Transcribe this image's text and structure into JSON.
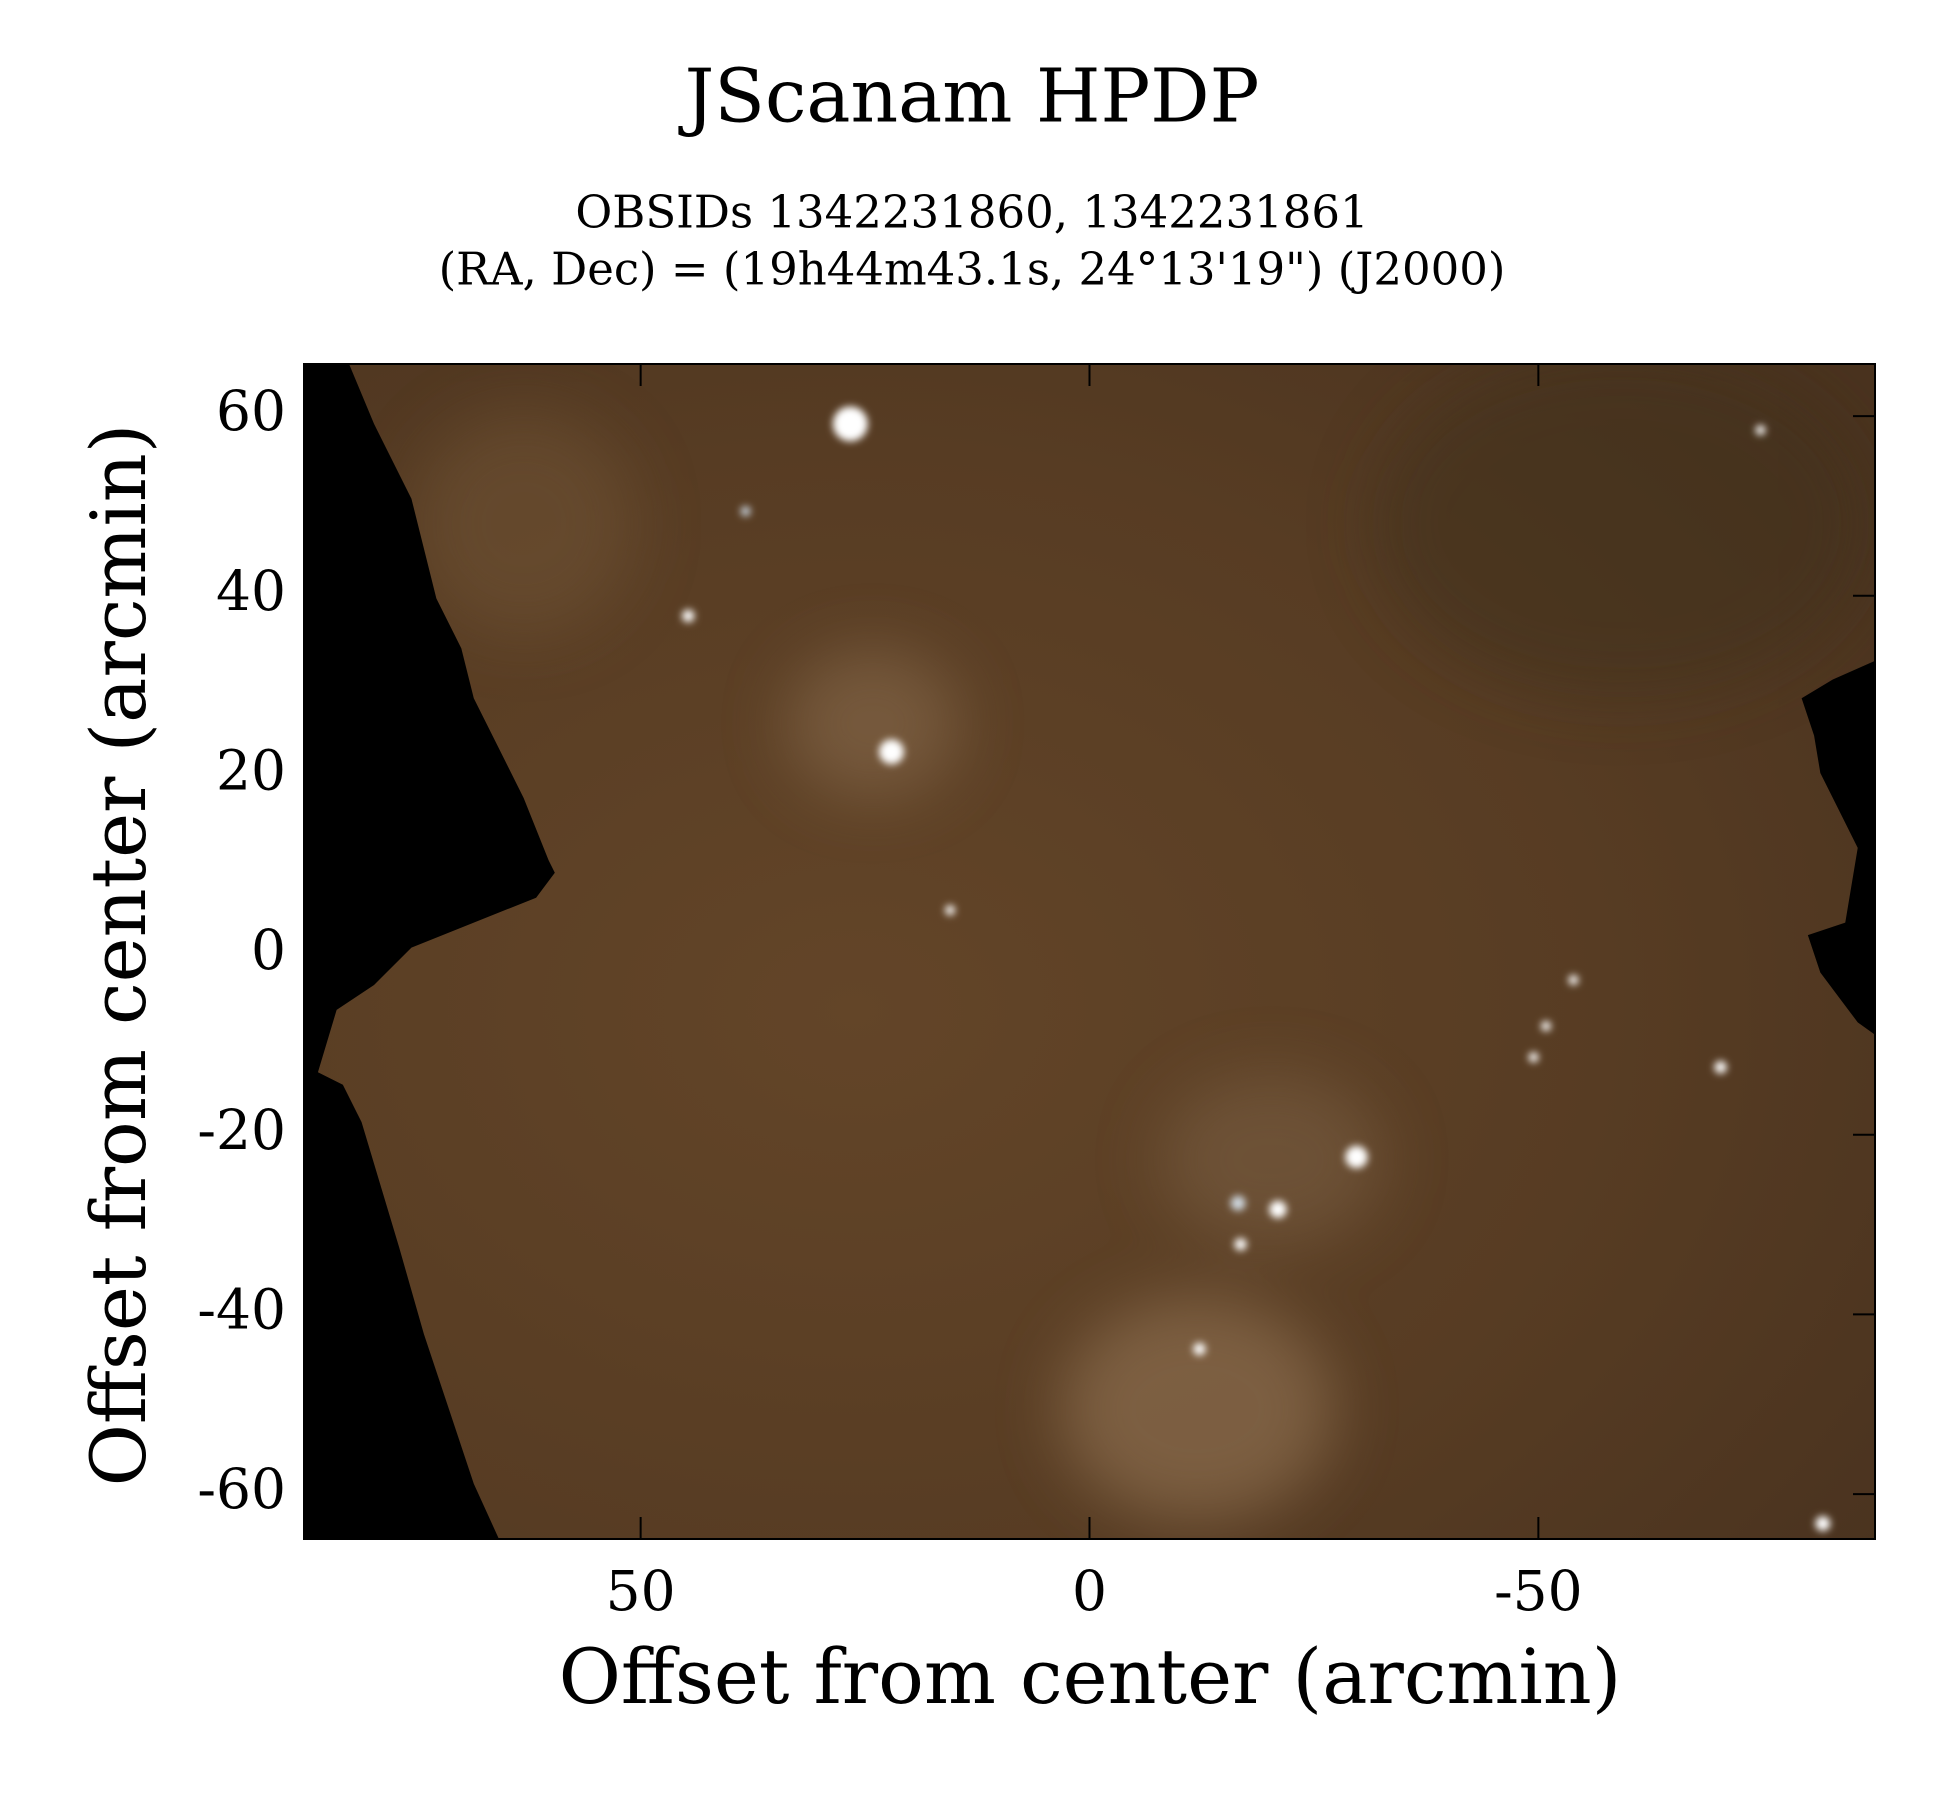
{
  "chart_data": {
    "type": "image",
    "title": "JScanam HPDP",
    "subtitle": [
      "OBSIDs 1342231860, 1342231861",
      "(RA, Dec) = (19h44m43.1s, 24°13'19\") (J2000)"
    ],
    "xlabel": "Offset from center (arcmin)",
    "ylabel": "Offset from center (arcmin)",
    "xlim": [
      87.5,
      -87.5
    ],
    "xticks": [
      50,
      0,
      -50
    ],
    "ylim": [
      -65,
      65.8
    ],
    "yticks": [
      -60,
      -40,
      -20,
      0,
      20,
      40,
      60
    ]
  }
}
